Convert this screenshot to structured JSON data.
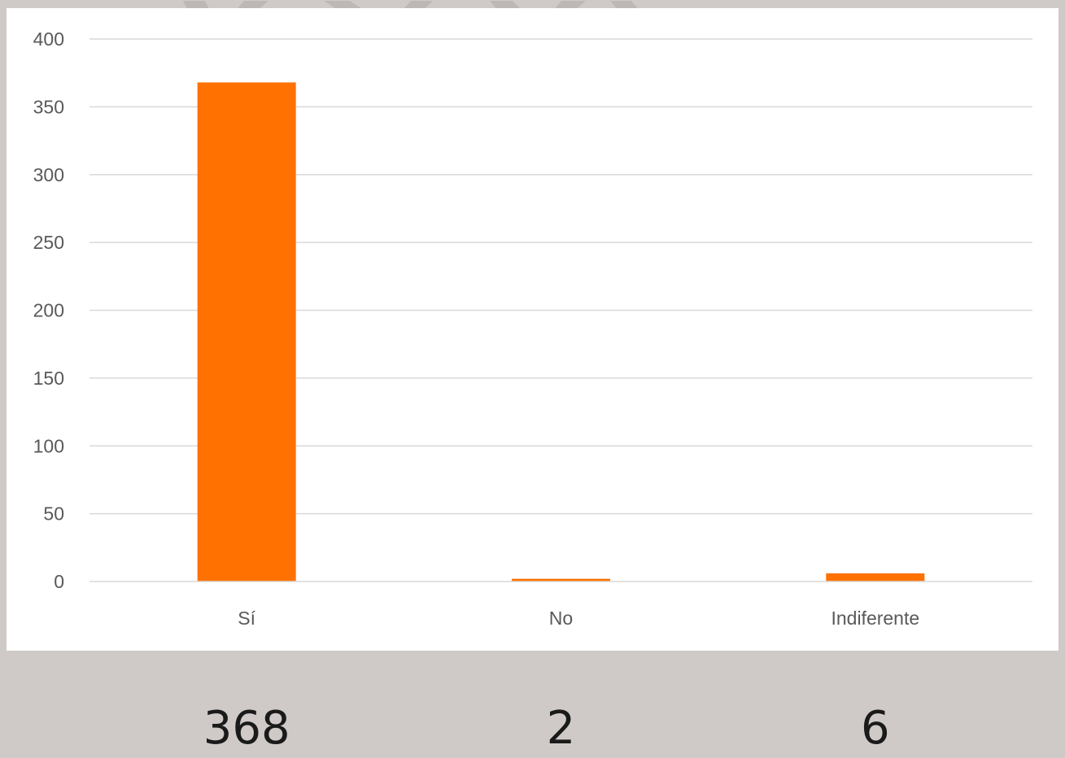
{
  "colors": {
    "bar": "#ff7100",
    "grid": "#d9d9d9",
    "axis_text": "#595959",
    "panel_background": "#ffffff",
    "page_background": "#cfcac8"
  },
  "chart_data": {
    "type": "bar",
    "categories": [
      "Sí",
      "No",
      "Indiferente"
    ],
    "values": [
      368,
      2,
      6
    ],
    "y_ticks": [
      "0",
      "50",
      "100",
      "150",
      "200",
      "250",
      "300",
      "350",
      "400"
    ],
    "ylim": [
      0,
      400
    ],
    "grid": true,
    "legend": "none"
  },
  "totals": [
    {
      "value": "368"
    },
    {
      "value": "2"
    },
    {
      "value": "6"
    }
  ]
}
